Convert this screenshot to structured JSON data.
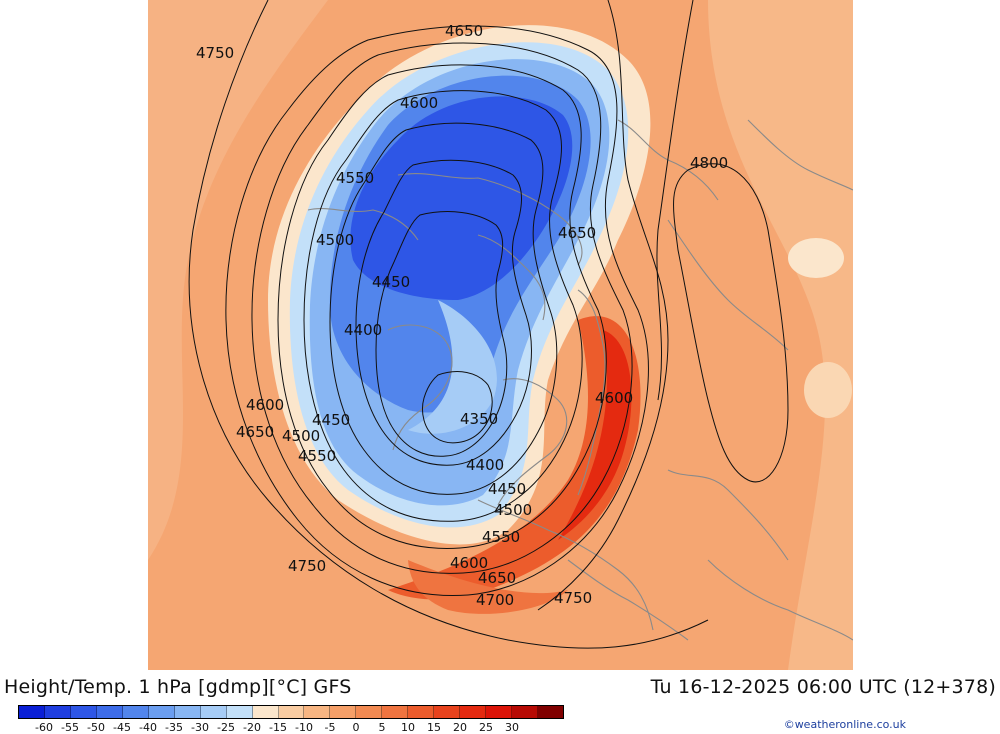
{
  "title": "Height/Temp. 1 hPa [gdmp][°C] GFS",
  "datetime": "Tu 16-12-2025 06:00 UTC (12+378)",
  "credit": "©weatheronline.co.uk",
  "colorbar": {
    "ticks": [
      "-60",
      "-55",
      "-50",
      "-45",
      "-40",
      "-35",
      "-30",
      "-25",
      "-20",
      "-15",
      "-10",
      "-5",
      "0",
      "5",
      "10",
      "15",
      "20",
      "25",
      "30"
    ],
    "colors": [
      "#0a1fd6",
      "#1f3ee0",
      "#2e56e6",
      "#3d6ce9",
      "#5285ec",
      "#6b9ef0",
      "#88b6f3",
      "#a6ccf6",
      "#c3e0f9",
      "#fbe6cc",
      "#f9cca2",
      "#f7b582",
      "#f59f68",
      "#f28a52",
      "#ef7440",
      "#ec5c2c",
      "#e8431d",
      "#e42a10",
      "#dc1408",
      "#b70a04",
      "#800000"
    ]
  },
  "contours": [
    {
      "label": "4750"
    },
    {
      "label": "4650"
    },
    {
      "label": "4600"
    },
    {
      "label": "4550"
    },
    {
      "label": "4800"
    },
    {
      "label": "4500"
    },
    {
      "label": "4650"
    },
    {
      "label": "4450"
    },
    {
      "label": "4400"
    },
    {
      "label": "4600"
    },
    {
      "label": "4600"
    },
    {
      "label": "4450"
    },
    {
      "label": "4650"
    },
    {
      "label": "4500"
    },
    {
      "label": "4350"
    },
    {
      "label": "4550"
    },
    {
      "label": "4400"
    },
    {
      "label": "4450"
    },
    {
      "label": "4500"
    },
    {
      "label": "4550"
    },
    {
      "label": "4600"
    },
    {
      "label": "4750"
    },
    {
      "label": "4650"
    },
    {
      "label": "4700"
    },
    {
      "label": "4750"
    }
  ],
  "colors": {
    "background": "#f5a672",
    "cold_core": "#2a55e4",
    "warm_band": "#e8431d"
  }
}
